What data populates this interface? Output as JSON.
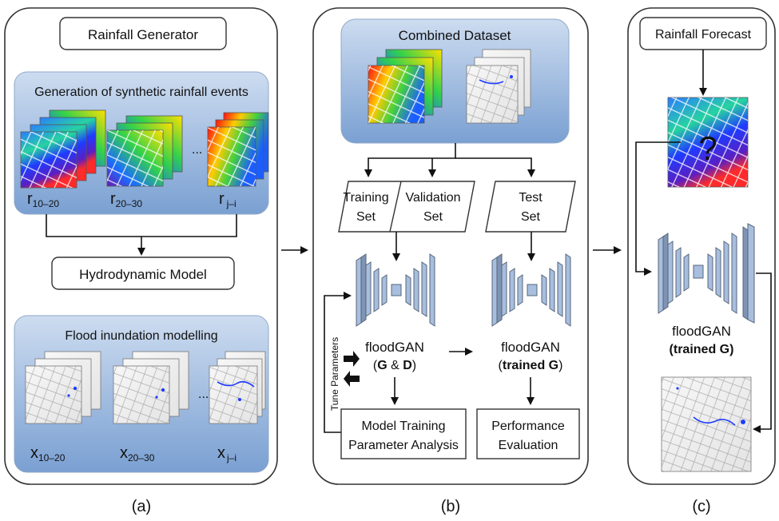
{
  "panel_a": {
    "title": "Rainfall Generator",
    "synthetic_heading": "Generation of synthetic rainfall events",
    "rain_labels": [
      {
        "main": "r",
        "sub": "10–20"
      },
      {
        "main": "r",
        "sub": "20–30"
      },
      {
        "main": "r",
        "sub": "j–i"
      }
    ],
    "ellipsis": "...",
    "hydro_title": "Hydrodynamic Model",
    "flood_heading": "Flood inundation modelling",
    "flood_labels": [
      {
        "main": "x",
        "sub": "10–20"
      },
      {
        "main": "x",
        "sub": "20–30"
      },
      {
        "main": "x",
        "sub": "j–i"
      }
    ],
    "caption": "(a)"
  },
  "panel_b": {
    "combined_title": "Combined Dataset",
    "training_line1": "Training",
    "training_line2": "Set",
    "validation_line1": "Validation",
    "validation_line2": "Set",
    "test_line1": "Test",
    "test_line2": "Set",
    "tune_label": "Tune Parameters",
    "gan1_name": "floodGAN",
    "gan1_open": "(",
    "gan1_g": "G",
    "gan1_amp": " & ",
    "gan1_d": "D",
    "gan1_close": ")",
    "gan2_name": "floodGAN",
    "gan2_open": "(",
    "gan2_bold": "trained G",
    "gan2_close": ")",
    "box1_line1": "Model Training",
    "box1_line2": "Parameter Analysis",
    "box2_line1": "Performance",
    "box2_line2": "Evaluation",
    "question": "?",
    "caption": "(b)"
  },
  "panel_c": {
    "title": "Rainfall Forecast",
    "question": "?",
    "gan_name": "floodGAN",
    "gan_sub": "(trained G)",
    "caption": "(c)"
  },
  "colors": {
    "panel_blue_top": "#c9d9ef",
    "panel_blue_bottom": "#7fa3d3",
    "cnn_fill": "#a8bede"
  }
}
